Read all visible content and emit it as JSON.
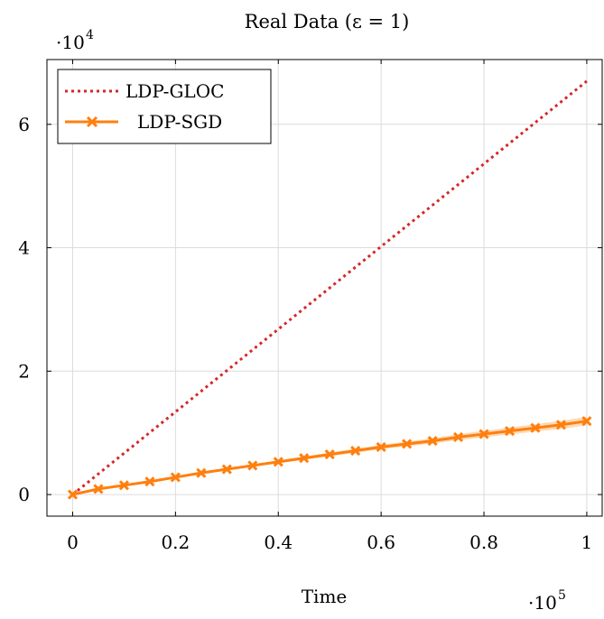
{
  "chart_data": {
    "type": "line",
    "title": "Real Data (ε = 1)",
    "xlabel": "Time",
    "ylabel": "",
    "x_multiplier": "·10^5",
    "y_multiplier": "·10^4",
    "xlim": [
      -0.05,
      1.03
    ],
    "ylim": [
      -0.35,
      7.05
    ],
    "xticks": [
      0,
      0.2,
      0.4,
      0.6,
      0.8,
      1
    ],
    "xtick_labels": [
      "0",
      "0.2",
      "0.4",
      "0.6",
      "0.8",
      "1"
    ],
    "yticks": [
      0,
      2,
      4,
      6
    ],
    "ytick_labels": [
      "0",
      "2",
      "4",
      "6"
    ],
    "grid": true,
    "legend_position": "top-left",
    "series": [
      {
        "name": "LDP-GLOC",
        "style": "dotted",
        "color": "#d62728",
        "x": [
          0,
          1
        ],
        "y": [
          0,
          6.7
        ]
      },
      {
        "name": "LDP-SGD",
        "style": "solid-x-markers",
        "color": "#ff7f0e",
        "band_color": "#ffbb78",
        "x": [
          0,
          0.05,
          0.1,
          0.15,
          0.2,
          0.25,
          0.3,
          0.35,
          0.4,
          0.45,
          0.5,
          0.55,
          0.6,
          0.65,
          0.7,
          0.75,
          0.8,
          0.85,
          0.9,
          0.95,
          1
        ],
        "y": [
          0,
          0.09,
          0.15,
          0.21,
          0.28,
          0.35,
          0.41,
          0.47,
          0.53,
          0.59,
          0.65,
          0.71,
          0.77,
          0.82,
          0.87,
          0.93,
          0.98,
          1.03,
          1.08,
          1.13,
          1.19
        ],
        "band_halfwidth": [
          0,
          0.005,
          0.01,
          0.012,
          0.015,
          0.018,
          0.02,
          0.023,
          0.025,
          0.028,
          0.03,
          0.033,
          0.036,
          0.04,
          0.044,
          0.048,
          0.052,
          0.056,
          0.06,
          0.065,
          0.07
        ]
      }
    ]
  }
}
